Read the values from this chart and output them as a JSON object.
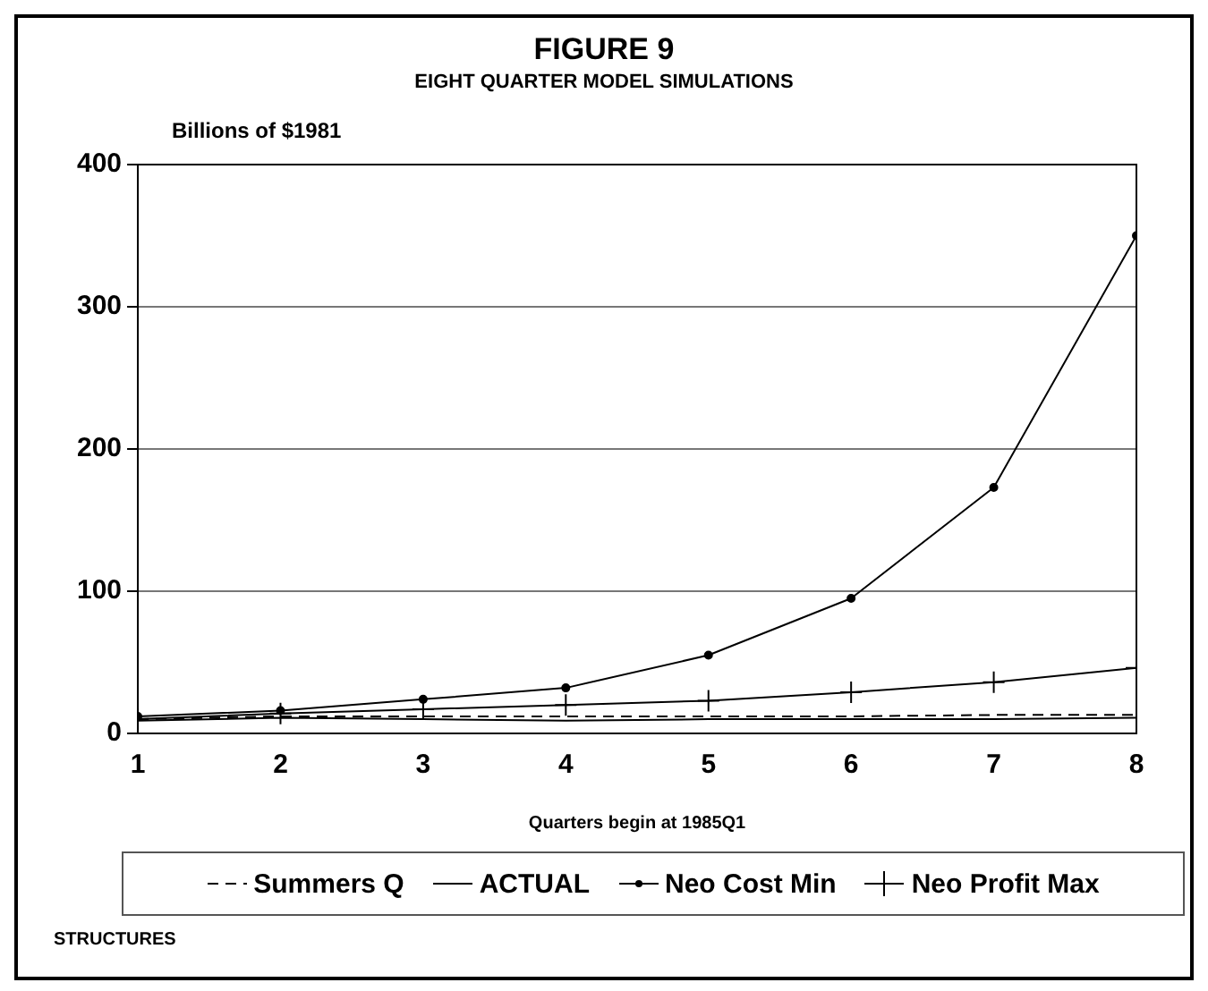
{
  "chart_data": {
    "type": "line",
    "title": "FIGURE 9",
    "subtitle": "EIGHT QUARTER MODEL SIMULATIONS",
    "ylabel": "Billions of $1981",
    "xlabel": "Quarters begin at 1985Q1",
    "x": [
      1,
      2,
      3,
      4,
      5,
      6,
      7,
      8
    ],
    "xlim": [
      1,
      8
    ],
    "xticks": [
      1,
      2,
      3,
      4,
      5,
      6,
      7,
      8
    ],
    "ylim": [
      0,
      400
    ],
    "yticks": [
      0,
      100,
      200,
      300,
      400
    ],
    "grid": "y",
    "legend": "bottom",
    "series": [
      {
        "name": "Summers Q",
        "color": "#000000",
        "line_style": "dashed",
        "marker": "none",
        "values": [
          10,
          12,
          12,
          12,
          12,
          12,
          13,
          13
        ]
      },
      {
        "name": "ACTUAL",
        "color": "#000000",
        "line_style": "solid",
        "marker": "none",
        "values": [
          9,
          11,
          10,
          9,
          10,
          10,
          10,
          11
        ]
      },
      {
        "name": "Neo Cost Min",
        "color": "#000000",
        "line_style": "solid",
        "marker": "circle",
        "values": [
          12,
          16,
          24,
          32,
          55,
          95,
          173,
          350
        ]
      },
      {
        "name": "Neo Profit Max",
        "color": "#000000",
        "line_style": "solid",
        "marker": "cross",
        "values": [
          10,
          14,
          17,
          20,
          23,
          29,
          36,
          46
        ]
      }
    ],
    "annotations": [
      "STRUCTURES"
    ]
  }
}
